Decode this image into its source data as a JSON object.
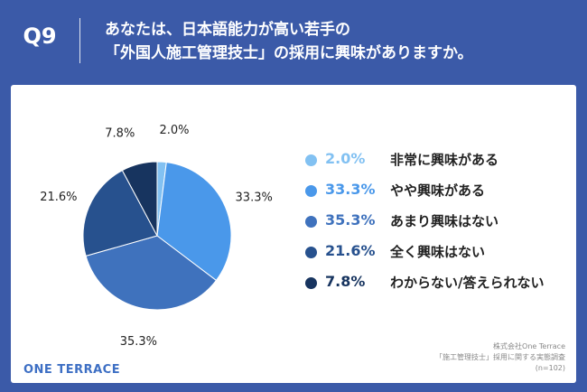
{
  "header": {
    "qnum": "Q9",
    "line1": "あなたは、日本語能力が高い若手の",
    "line2": "「外国人施工管理技士」の採用に興味がありますか。"
  },
  "chart_data": {
    "type": "pie",
    "categories": [
      "非常に興味がある",
      "やや興味がある",
      "あまり興味はない",
      "全く興味はない",
      "わからない/答えられない"
    ],
    "values": [
      2.0,
      33.3,
      35.3,
      21.6,
      7.8
    ],
    "value_labels": [
      "2.0%",
      "33.3%",
      "35.3%",
      "21.6%",
      "7.8%"
    ],
    "colors": [
      "#82c1f2",
      "#4a98ea",
      "#3f72bd",
      "#27518e",
      "#17345f"
    ],
    "legend_position": "right",
    "start": "top, clockwise"
  },
  "footer": {
    "logo": "ONE TERRACE",
    "source_line1": "株式会社One Terrace",
    "source_line2": "「施工管理技士」採用に関する実態調査",
    "source_line3": "(n=102)"
  }
}
